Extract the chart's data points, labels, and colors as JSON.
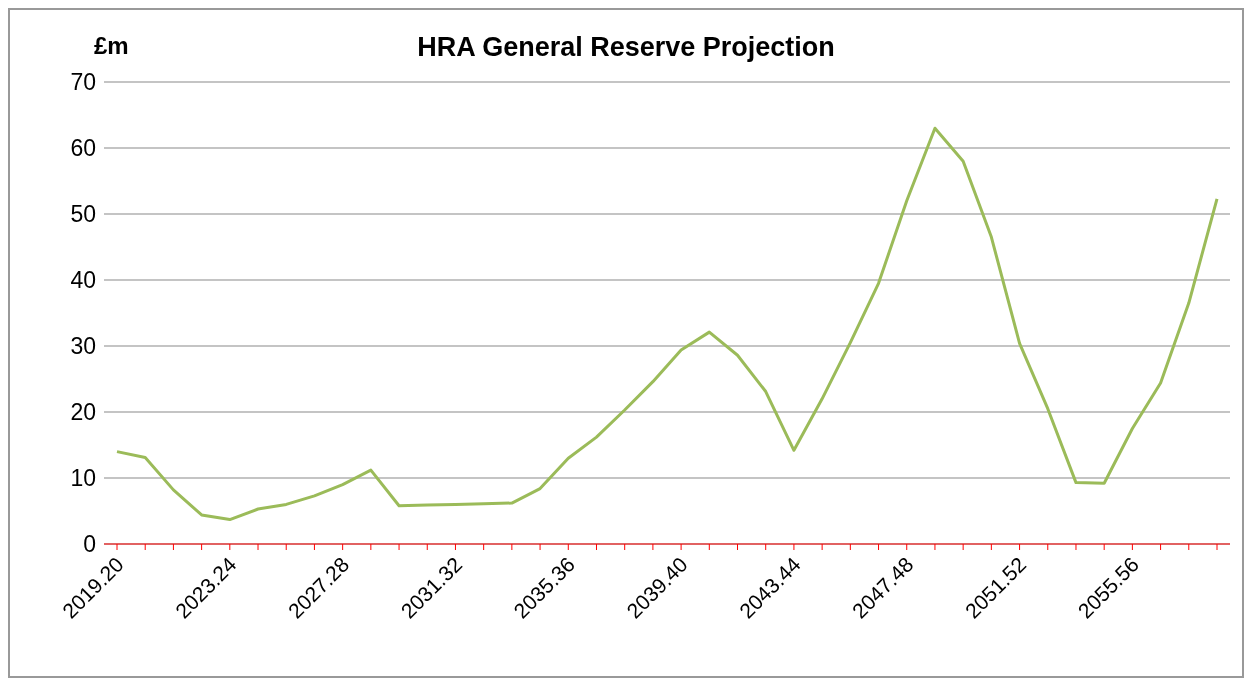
{
  "chart_data": {
    "type": "line",
    "title": "HRA General Reserve Projection",
    "ylabel": "£m",
    "categories": [
      "2019.20",
      null,
      null,
      null,
      "2023.24",
      null,
      null,
      null,
      "2027.28",
      null,
      null,
      null,
      "2031.32",
      null,
      null,
      null,
      "2035.36",
      null,
      null,
      null,
      "2039.40",
      null,
      null,
      null,
      "2043.44",
      null,
      null,
      null,
      "2047.48",
      null,
      null,
      null,
      "2051.52",
      null,
      null,
      null,
      "2055.56",
      null,
      null,
      null
    ],
    "series": [
      {
        "color": "#9bbb59",
        "values": [
          14,
          13.1,
          8.2,
          4.4,
          3.7,
          5.3,
          6,
          7.3,
          9,
          11.2,
          5.8,
          5.9,
          6,
          6.1,
          6.2,
          8.4,
          13,
          16.2,
          20.3,
          24.6,
          29.4,
          32.1,
          28.6,
          23.1,
          14.2,
          22,
          30.5,
          39.5,
          52,
          63,
          58,
          46.5,
          30.4,
          20.5,
          9.3,
          9.2,
          17.5,
          24.4,
          36.5,
          52.3
        ]
      }
    ],
    "ylim": [
      0,
      70
    ],
    "yticks": [
      0,
      10,
      20,
      30,
      40,
      50,
      60,
      70
    ],
    "grid": "y",
    "legend": false,
    "marker": "none",
    "line_style": "solid"
  }
}
